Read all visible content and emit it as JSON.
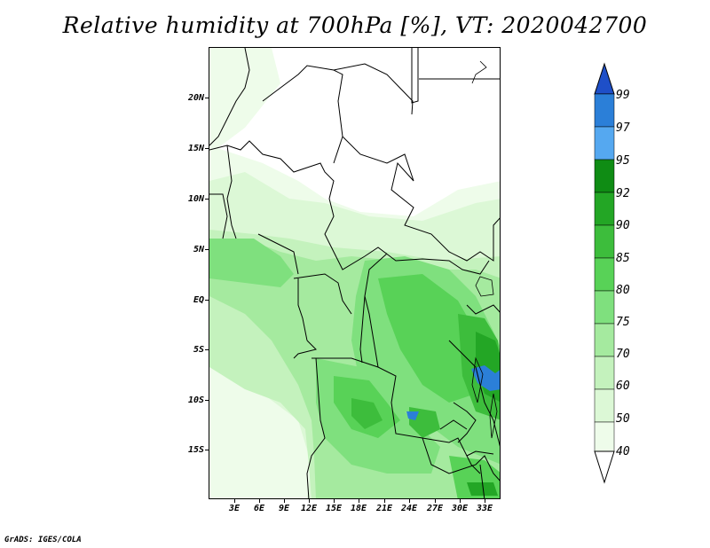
{
  "title": "Relative humidity at 700hPa [%], VT: 2020042700",
  "credit": "GrADS: IGES/COLA",
  "map": {
    "lat_labels": [
      "20N",
      "15N",
      "10N",
      "5N",
      "EQ",
      "5S",
      "10S",
      "15S"
    ],
    "lon_labels": [
      "3E",
      "6E",
      "9E",
      "12E",
      "15E",
      "18E",
      "21E",
      "24E",
      "27E",
      "30E",
      "33E"
    ]
  },
  "colorbar": {
    "levels": [
      "99",
      "97",
      "95",
      "92",
      "90",
      "85",
      "80",
      "75",
      "70",
      "60",
      "50",
      "40"
    ],
    "colors": [
      "#1e4fc8",
      "#2b7fd8",
      "#55a8f0",
      "#0f8c14",
      "#23a625",
      "#3dbd3c",
      "#58d257",
      "#7fe07e",
      "#a5ea9f",
      "#c4f2bd",
      "#dcf8d6",
      "#eefcea",
      "#ffffff"
    ]
  }
}
